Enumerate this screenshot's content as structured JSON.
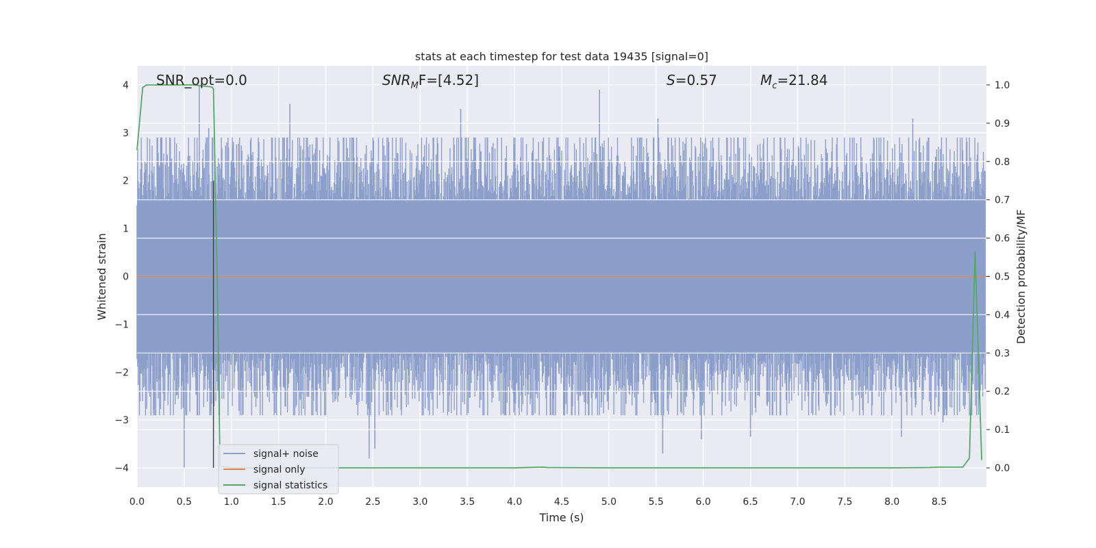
{
  "chart_data": {
    "type": "line",
    "title": "stats at each timestep for test data 19435 [signal=0]",
    "xlabel": "Time (s)",
    "ylabel": "Whitened strain",
    "y2label": "Detection probability/MF",
    "xlim": [
      0.0,
      9.0
    ],
    "ylim": [
      -4.4,
      4.4
    ],
    "y2lim": [
      -0.05,
      1.05
    ],
    "x_ticks": [
      0.0,
      0.5,
      1.0,
      1.5,
      2.0,
      2.5,
      3.0,
      3.5,
      4.0,
      4.5,
      5.0,
      5.5,
      6.0,
      6.5,
      7.0,
      7.5,
      8.0,
      8.5
    ],
    "x_tick_labels": [
      "0.0",
      "0.5",
      "1.0",
      "1.5",
      "2.0",
      "2.5",
      "3.0",
      "3.5",
      "4.0",
      "4.5",
      "5.0",
      "5.5",
      "6.0",
      "6.5",
      "7.0",
      "7.5",
      "8.0",
      "8.5"
    ],
    "y_ticks": [
      -4,
      -3,
      -2,
      -1,
      0,
      1,
      2,
      3,
      4
    ],
    "y_tick_labels": [
      "−4",
      "−3",
      "−2",
      "−1",
      "0",
      "1",
      "2",
      "3",
      "4"
    ],
    "y2_ticks": [
      0.0,
      0.1,
      0.2,
      0.3,
      0.4,
      0.5,
      0.6,
      0.7,
      0.8,
      0.9,
      1.0
    ],
    "y2_tick_labels": [
      "0.0",
      "0.1",
      "0.2",
      "0.3",
      "0.4",
      "0.5",
      "0.6",
      "0.7",
      "0.8",
      "0.9",
      "1.0"
    ],
    "grid": true,
    "legend_position": "lower-left",
    "annotations": {
      "snr_opt": "SNR_opt=0.0",
      "snr_mf_label": "SNR",
      "snr_mf_sub": "M",
      "snr_mf_rest": "F=[4.52]",
      "s_label": "S",
      "s_value": "=0.57",
      "mc_label": "M",
      "mc_sub": "c",
      "mc_value": "=21.84"
    },
    "vertical_marker_x": 0.81,
    "series": [
      {
        "name": "signal+ noise",
        "color": "#8c9fca",
        "axis": "left",
        "style": "dense-noise",
        "core_band": [
          -1.6,
          1.6
        ],
        "typical_extremes": [
          -2.5,
          2.5
        ],
        "notable_peaks": [
          {
            "x": 0.66,
            "y": 3.99
          },
          {
            "x": 0.76,
            "y": 3.1
          },
          {
            "x": 1.62,
            "y": 3.6
          },
          {
            "x": 3.43,
            "y": 3.5
          },
          {
            "x": 4.9,
            "y": 3.9
          },
          {
            "x": 5.52,
            "y": 3.3
          },
          {
            "x": 8.22,
            "y": 3.3
          }
        ],
        "notable_troughs": [
          {
            "x": 0.5,
            "y": -4.0
          },
          {
            "x": 2.46,
            "y": -3.8
          },
          {
            "x": 2.52,
            "y": -3.6
          },
          {
            "x": 5.57,
            "y": -3.7
          },
          {
            "x": 5.98,
            "y": -3.4
          },
          {
            "x": 6.5,
            "y": -3.35
          },
          {
            "x": 8.1,
            "y": -3.35
          },
          {
            "x": 8.54,
            "y": -3.05
          }
        ]
      },
      {
        "name": "signal only",
        "color": "#dd8452",
        "axis": "left",
        "x": [
          0.0,
          9.0
        ],
        "y": [
          0.0,
          0.0
        ]
      },
      {
        "name": "signal statistics",
        "color": "#55a868",
        "axis": "right",
        "x": [
          0.0,
          0.06,
          0.1,
          0.2,
          0.4,
          0.6,
          0.79,
          0.81,
          0.85,
          0.88,
          1.0,
          2.0,
          3.0,
          4.0,
          4.3,
          4.35,
          5.0,
          6.0,
          7.0,
          8.0,
          8.4,
          8.5,
          8.75,
          8.82,
          8.88,
          8.95
        ],
        "y": [
          0.83,
          0.993,
          1.0,
          1.0,
          1.0,
          1.0,
          0.995,
          0.99,
          0.5,
          0.005,
          0.0,
          0.0,
          0.0,
          0.0,
          0.002,
          0.001,
          0.0,
          0.0,
          0.0,
          0.0,
          0.001,
          0.002,
          0.002,
          0.025,
          0.565,
          0.02
        ]
      }
    ]
  }
}
